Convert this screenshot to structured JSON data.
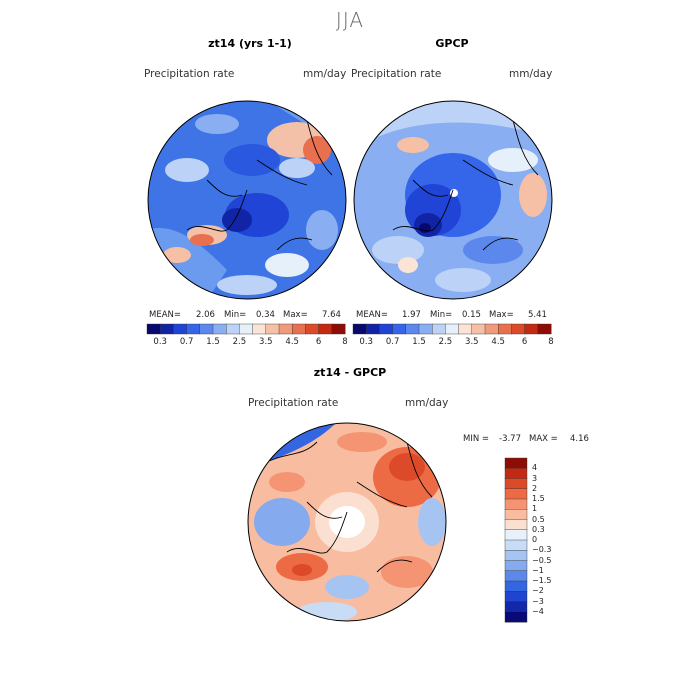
{
  "figure": {
    "title": "JJA"
  },
  "panels": [
    {
      "title": "zt14 (yrs 1-1)",
      "variable": "Precipitation rate",
      "units": "mm/day",
      "stats": {
        "mean_label": "MEAN=",
        "mean": "2.06",
        "min_label": "Min=",
        "min": "0.34",
        "max_label": "Max=",
        "max": "7.64"
      }
    },
    {
      "title": "GPCP",
      "variable": "Precipitation rate",
      "units": "mm/day",
      "stats": {
        "mean_label": "MEAN=",
        "mean": "1.97",
        "min_label": "Min=",
        "min": "0.15",
        "max_label": "Max=",
        "max": "5.41"
      }
    },
    {
      "title": "zt14 - GPCP",
      "variable": "Precipitation rate",
      "units": "mm/day",
      "stats": {
        "min_label": "MIN =",
        "min": "-3.77",
        "max_label": "MAX =",
        "max": "4.16"
      }
    }
  ],
  "colorbar_abs": {
    "colors": [
      "#08086e",
      "#1224a6",
      "#1f44d6",
      "#3566ea",
      "#5c88ee",
      "#8aaef2",
      "#bcd2f6",
      "#e6f0fb",
      "#fbe4d6",
      "#f6c0a6",
      "#f09a7a",
      "#e8704e",
      "#dc4a2a",
      "#c42a12",
      "#8e0c06"
    ],
    "ticks": [
      "0.3",
      "0.7",
      "1.5",
      "2.5",
      "3.5",
      "4.5",
      "6",
      "8"
    ]
  },
  "colorbar_diff": {
    "colors_top_to_bottom": [
      "#8e0c06",
      "#c42a12",
      "#dc4a2a",
      "#ec6a44",
      "#f49472",
      "#f8bca0",
      "#fbe0d2",
      "#e8f0fb",
      "#c8dcf6",
      "#a6c4f2",
      "#86aaee",
      "#5c88ea",
      "#3566e2",
      "#1f44d0",
      "#1228a8",
      "#080a78"
    ],
    "ticks_top_to_bottom": [
      "4",
      "3",
      "2",
      "1.5",
      "1",
      "0.5",
      "0.3",
      "0",
      "−0.3",
      "−0.5",
      "−1",
      "−1.5",
      "−2",
      "−3",
      "−4"
    ]
  }
}
